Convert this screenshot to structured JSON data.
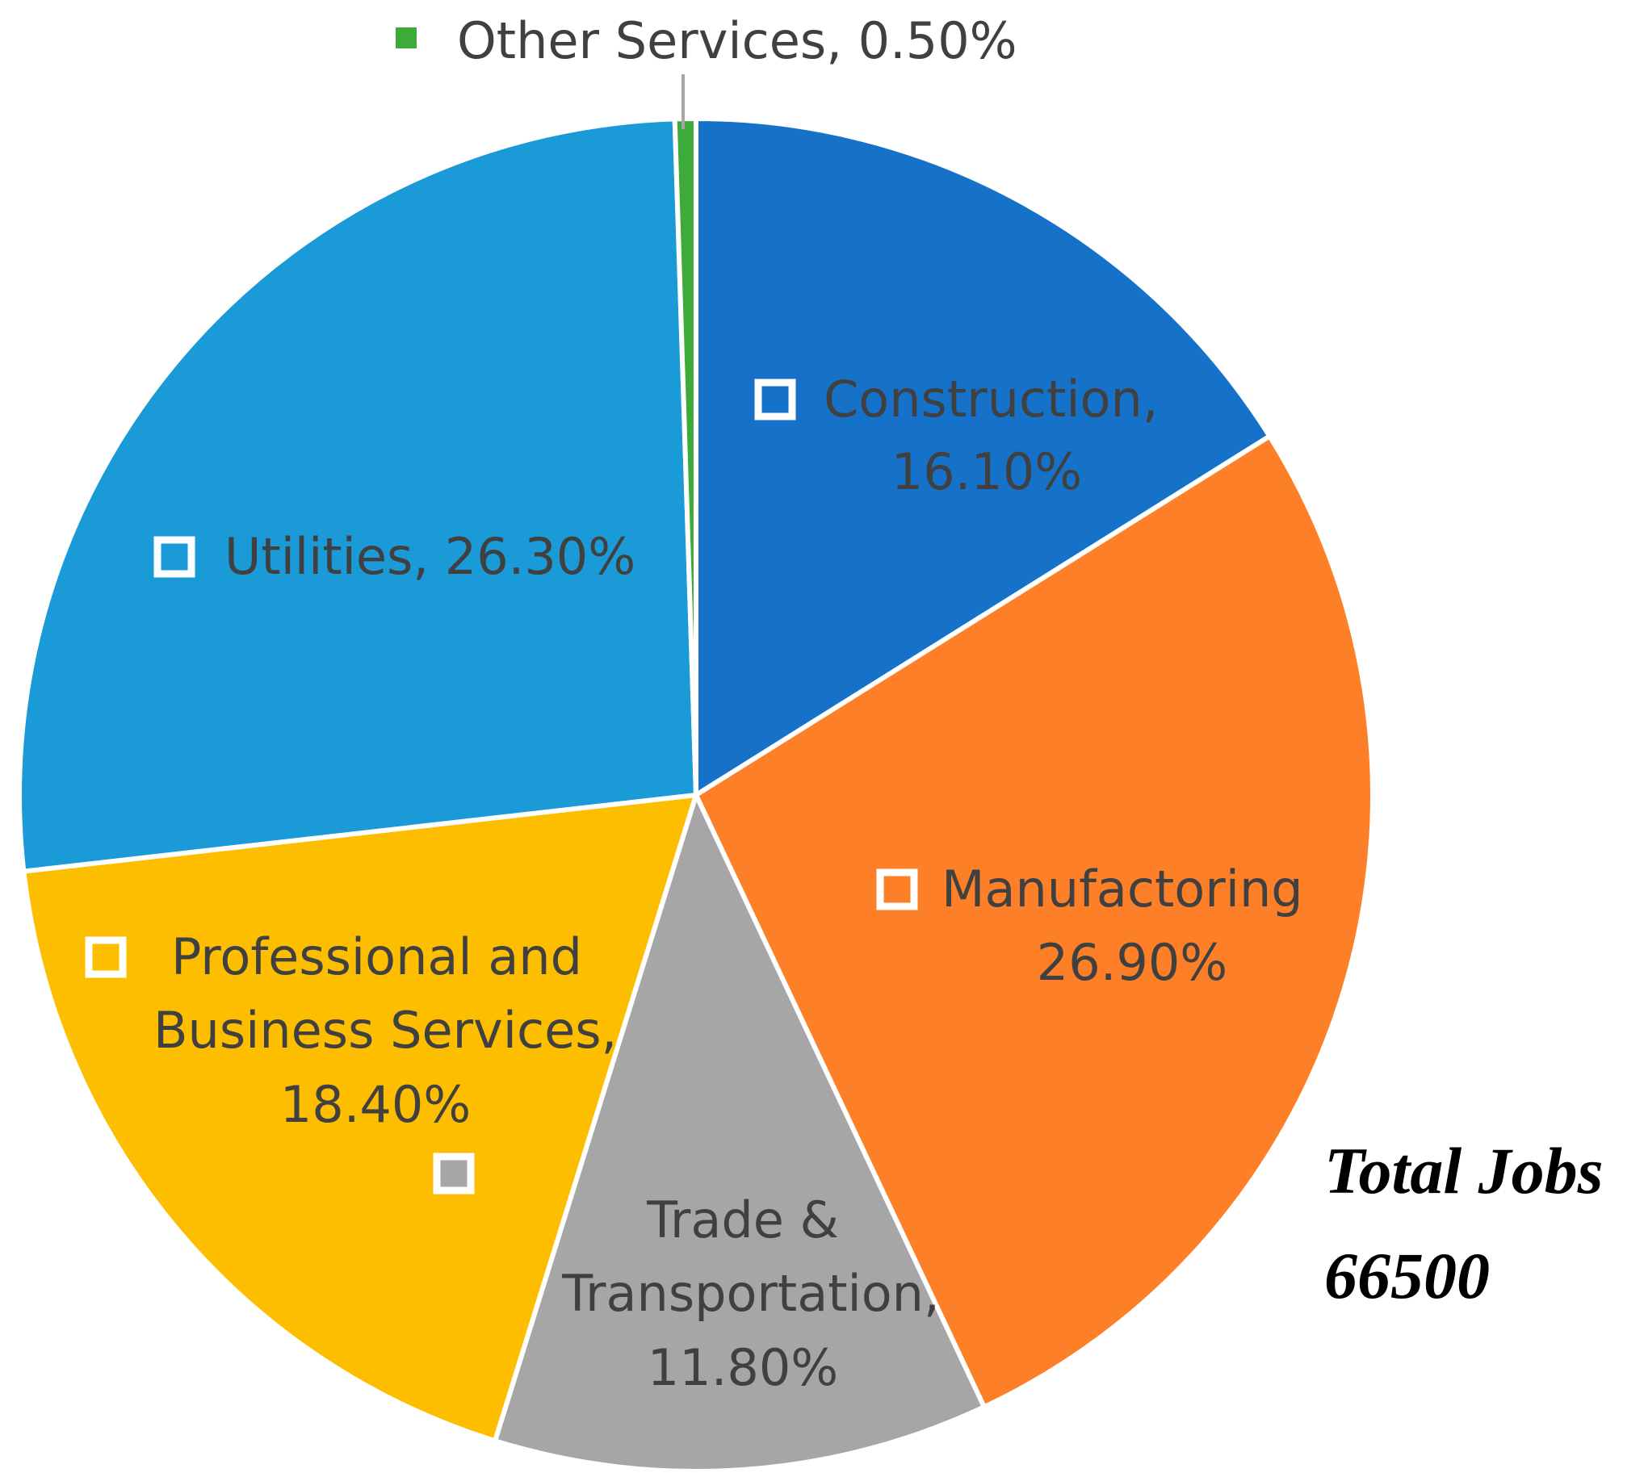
{
  "chart_data": {
    "type": "pie",
    "title": "",
    "slices": [
      {
        "name": "Construction",
        "value": 16.1,
        "label": "16.10%",
        "color": "#1572C8"
      },
      {
        "name": "Manufactoring",
        "value": 26.9,
        "label": "26.90%",
        "color": "#FD7F27"
      },
      {
        "name": "Trade & Transportation",
        "value": 11.8,
        "label": "11.80%",
        "color": "#A6A6A6"
      },
      {
        "name": "Professional and Business Services",
        "value": 18.4,
        "label": "18.40%",
        "color": "#FEBE00"
      },
      {
        "name": "Utilities",
        "value": 26.3,
        "label": "26.30%",
        "color": "#1A9AD6"
      },
      {
        "name": "Other Services",
        "value": 0.5,
        "label": "0.50%",
        "color": "#3DAA3A"
      }
    ],
    "labels": {
      "construction": {
        "line1": "Construction,",
        "line2": "16.10%"
      },
      "manufactoring": {
        "line1": "Manufactoring",
        "line2": "26.90%"
      },
      "trade": {
        "line1": "Trade &",
        "line2": "Transportation,",
        "line3": "11.80%"
      },
      "professional": {
        "line1": "Professional and",
        "line2": "Business Services,",
        "line3": "18.40%"
      },
      "utilities": {
        "line1": "Utilities, 26.30%"
      },
      "other": {
        "line1": "Other Services, 0.50%"
      }
    },
    "annotation": {
      "line1": "Total Jobs",
      "line2": "66500"
    }
  }
}
